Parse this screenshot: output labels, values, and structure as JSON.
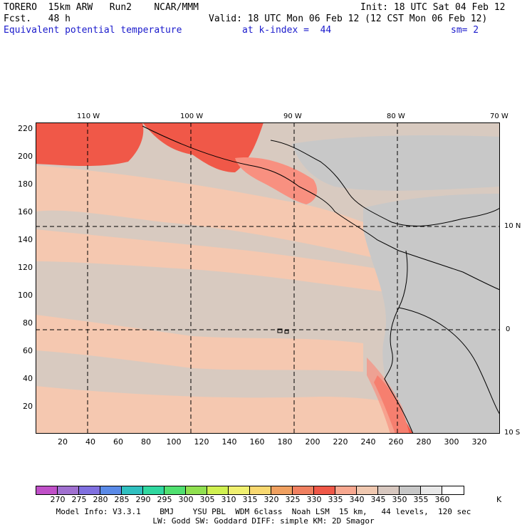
{
  "header": {
    "model_line": "TORERO  15km ARW   Run2    NCAR/MMM",
    "init": "Init: 18 UTC Sat 04 Feb 12",
    "fcst": "Fcst.   48 h",
    "valid": "Valid: 18 UTC Mon 06 Feb 12 (12 CST Mon 06 Feb 12)",
    "field": "Equivalent potential temperature",
    "level": "at k-index =  44",
    "smoothing": "sm= 2"
  },
  "axes": {
    "y_ticks": [
      "220",
      "200",
      "180",
      "160",
      "140",
      "120",
      "100",
      "80",
      "60",
      "40",
      "20"
    ],
    "x_ticks": [
      "20",
      "40",
      "60",
      "80",
      "100",
      "120",
      "140",
      "160",
      "180",
      "200",
      "220",
      "240",
      "260",
      "280",
      "300",
      "320"
    ],
    "lon_labels": [
      "110 W",
      "100 W",
      "90 W",
      "80 W",
      "70 W"
    ],
    "lat_labels": [
      "10 N",
      "0",
      "10 S"
    ]
  },
  "colorbar": {
    "labels": [
      "270",
      "275",
      "280",
      "285",
      "290",
      "295",
      "300",
      "305",
      "310",
      "315",
      "320",
      "325",
      "330",
      "335",
      "340",
      "345",
      "350",
      "355",
      "360"
    ],
    "unit": "K",
    "colors": [
      "#c050c8",
      "#a070d0",
      "#8070e0",
      "#5a8ae8",
      "#30c0c0",
      "#30d8a0",
      "#50e070",
      "#90e050",
      "#d0f050",
      "#f0f070",
      "#f8d870",
      "#f0a060",
      "#f08060",
      "#f05848",
      "#f8a890",
      "#f0c8b0",
      "#d8c8c0",
      "#c8c8c8",
      "#e8e8e8",
      "#ffffff"
    ]
  },
  "map": {
    "field_colors": {
      "warm_high": "#f05848",
      "warm_mid": "#f89080",
      "warm_low": "#f5c8b0",
      "neutral": "#d8cac0",
      "cool": "#c8c8c8",
      "coast": "#000000"
    }
  },
  "footer": {
    "line1": "Model Info: V3.3.1    BMJ    YSU PBL  WDM 6class  Noah LSM  15 km,   44 levels,  120 sec",
    "line2": "LW: Godd SW: Goddard DIFF: simple KM: 2D Smagor"
  }
}
